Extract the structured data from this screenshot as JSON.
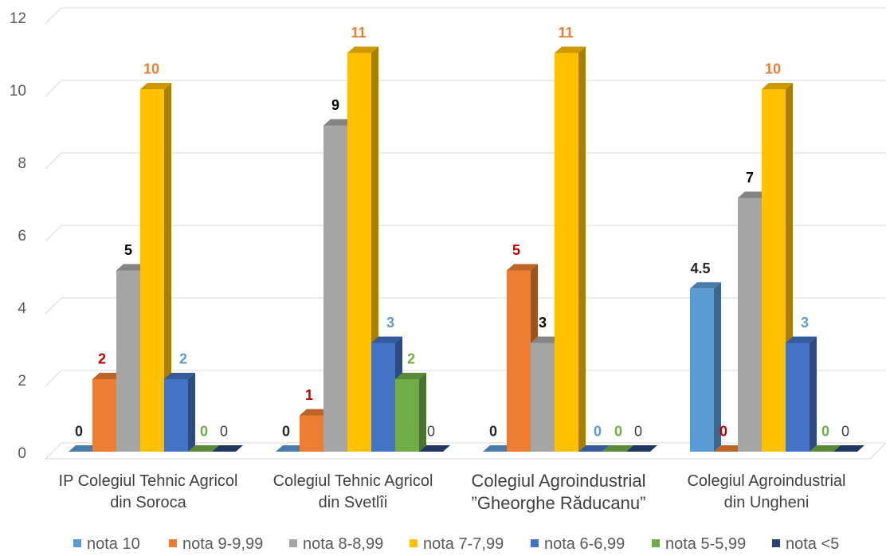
{
  "chart_data": {
    "type": "bar",
    "three_d": true,
    "grid": true,
    "legend": "bottom",
    "data_labels": true,
    "ylim": [
      0,
      12
    ],
    "yticks": [
      "0",
      "2",
      "4",
      "6",
      "8",
      "10",
      "12"
    ],
    "categories": [
      [
        "IP Colegiul Tehnic Agricol",
        "din Soroca"
      ],
      [
        "Colegiul Tehnic Agricol",
        "din Svetlîi"
      ],
      [
        "Colegiul Agroindustrial",
        "”Gheorghe Răducanu”"
      ],
      [
        "Colegiul Agroindustrial",
        "din Ungheni"
      ]
    ],
    "series": [
      {
        "name": "nota 10",
        "values": [
          0,
          0,
          0,
          4.5
        ],
        "color": "#5B9BD5",
        "label_color": "#262626"
      },
      {
        "name": "nota 9-9,99",
        "values": [
          2,
          1,
          5,
          0
        ],
        "color": "#ED7D31",
        "label_color": "#C00000"
      },
      {
        "name": "nota 8-8,99",
        "values": [
          5,
          9,
          3,
          7
        ],
        "color": "#A5A5A5",
        "label_color": "#000000"
      },
      {
        "name": "nota 7-7,99",
        "values": [
          10,
          11,
          11,
          10
        ],
        "color": "#FFC000",
        "label_color": "#ED7D31"
      },
      {
        "name": "nota 6-6,99",
        "values": [
          2,
          3,
          0,
          3
        ],
        "color": "#4472C4",
        "label_color": "#5B9BD5"
      },
      {
        "name": "nota 5-5,99",
        "values": [
          0,
          2,
          0,
          0
        ],
        "color": "#70AD47",
        "label_color": "#70AD47"
      },
      {
        "name": "nota <5",
        "values": [
          0,
          0,
          0,
          0
        ],
        "color": "#264478",
        "label_color": "#404040"
      }
    ]
  }
}
